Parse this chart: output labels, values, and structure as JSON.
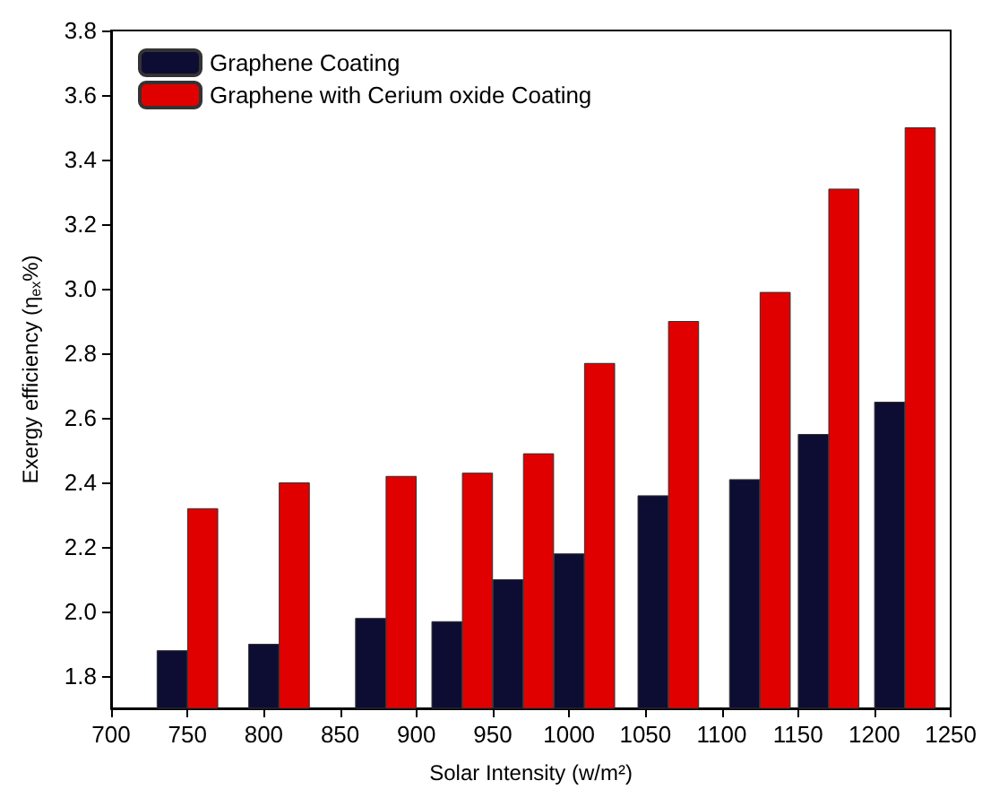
{
  "chart_data": {
    "type": "bar",
    "xlabel": "Solar Intensity (w/m²)",
    "ylabel": "Exergy efficiency (η$_{ex}$%)",
    "series": [
      {
        "name": "Graphene Coating",
        "color": "#0d0d33",
        "x": [
          740,
          800,
          870,
          920,
          960,
          1000,
          1055,
          1115,
          1160,
          1210
        ],
        "values": [
          1.88,
          1.9,
          1.98,
          1.97,
          2.1,
          2.18,
          2.36,
          2.41,
          2.55,
          2.65
        ]
      },
      {
        "name": "Graphene with Cerium oxide Coating",
        "color": "#e00000",
        "x": [
          760,
          820,
          890,
          940,
          980,
          1020,
          1075,
          1135,
          1180,
          1230
        ],
        "values": [
          2.32,
          2.4,
          2.42,
          2.43,
          2.49,
          2.77,
          2.9,
          2.99,
          3.31,
          3.5
        ]
      }
    ],
    "xlim": [
      700,
      1250
    ],
    "xticks": [
      700,
      750,
      800,
      850,
      900,
      950,
      1000,
      1050,
      1100,
      1150,
      1200,
      1250
    ],
    "ylim": [
      1.7,
      3.8
    ],
    "yticks": [
      1.8,
      {
        "value": 2,
        "label": "2.0"
      },
      2.2,
      2.4,
      2.6,
      2.8,
      {
        "value": 3,
        "label": "3.0"
      },
      3.2,
      3.4,
      3.6,
      3.8
    ],
    "grid": false,
    "legend": "top left"
  }
}
